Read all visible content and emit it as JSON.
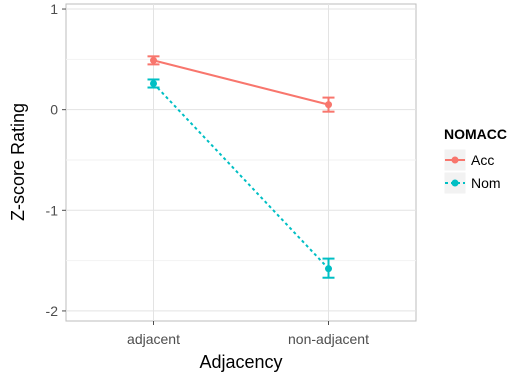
{
  "chart_data": {
    "type": "line",
    "title": "",
    "xlabel": "Adjacency",
    "ylabel": "Z-score Rating",
    "categories": [
      "adjacent",
      "non-adjacent"
    ],
    "ylim": [
      -2.1,
      1.05
    ],
    "yticks": [
      1,
      0,
      -1,
      -2
    ],
    "ytick_labels": [
      "1",
      "0",
      "-1",
      "-2"
    ],
    "grid": true,
    "legend": {
      "title": "NOMACC",
      "position": "right"
    },
    "series": [
      {
        "name": "Acc",
        "color": "#F8766D",
        "linestyle": "solid",
        "values": [
          0.49,
          0.05
        ],
        "err_low": [
          0.45,
          -0.02
        ],
        "err_high": [
          0.53,
          0.12
        ]
      },
      {
        "name": "Nom",
        "color": "#00BFC4",
        "linestyle": "dotted",
        "values": [
          0.26,
          -1.58
        ],
        "err_low": [
          0.22,
          -1.67
        ],
        "err_high": [
          0.3,
          -1.48
        ]
      }
    ]
  }
}
